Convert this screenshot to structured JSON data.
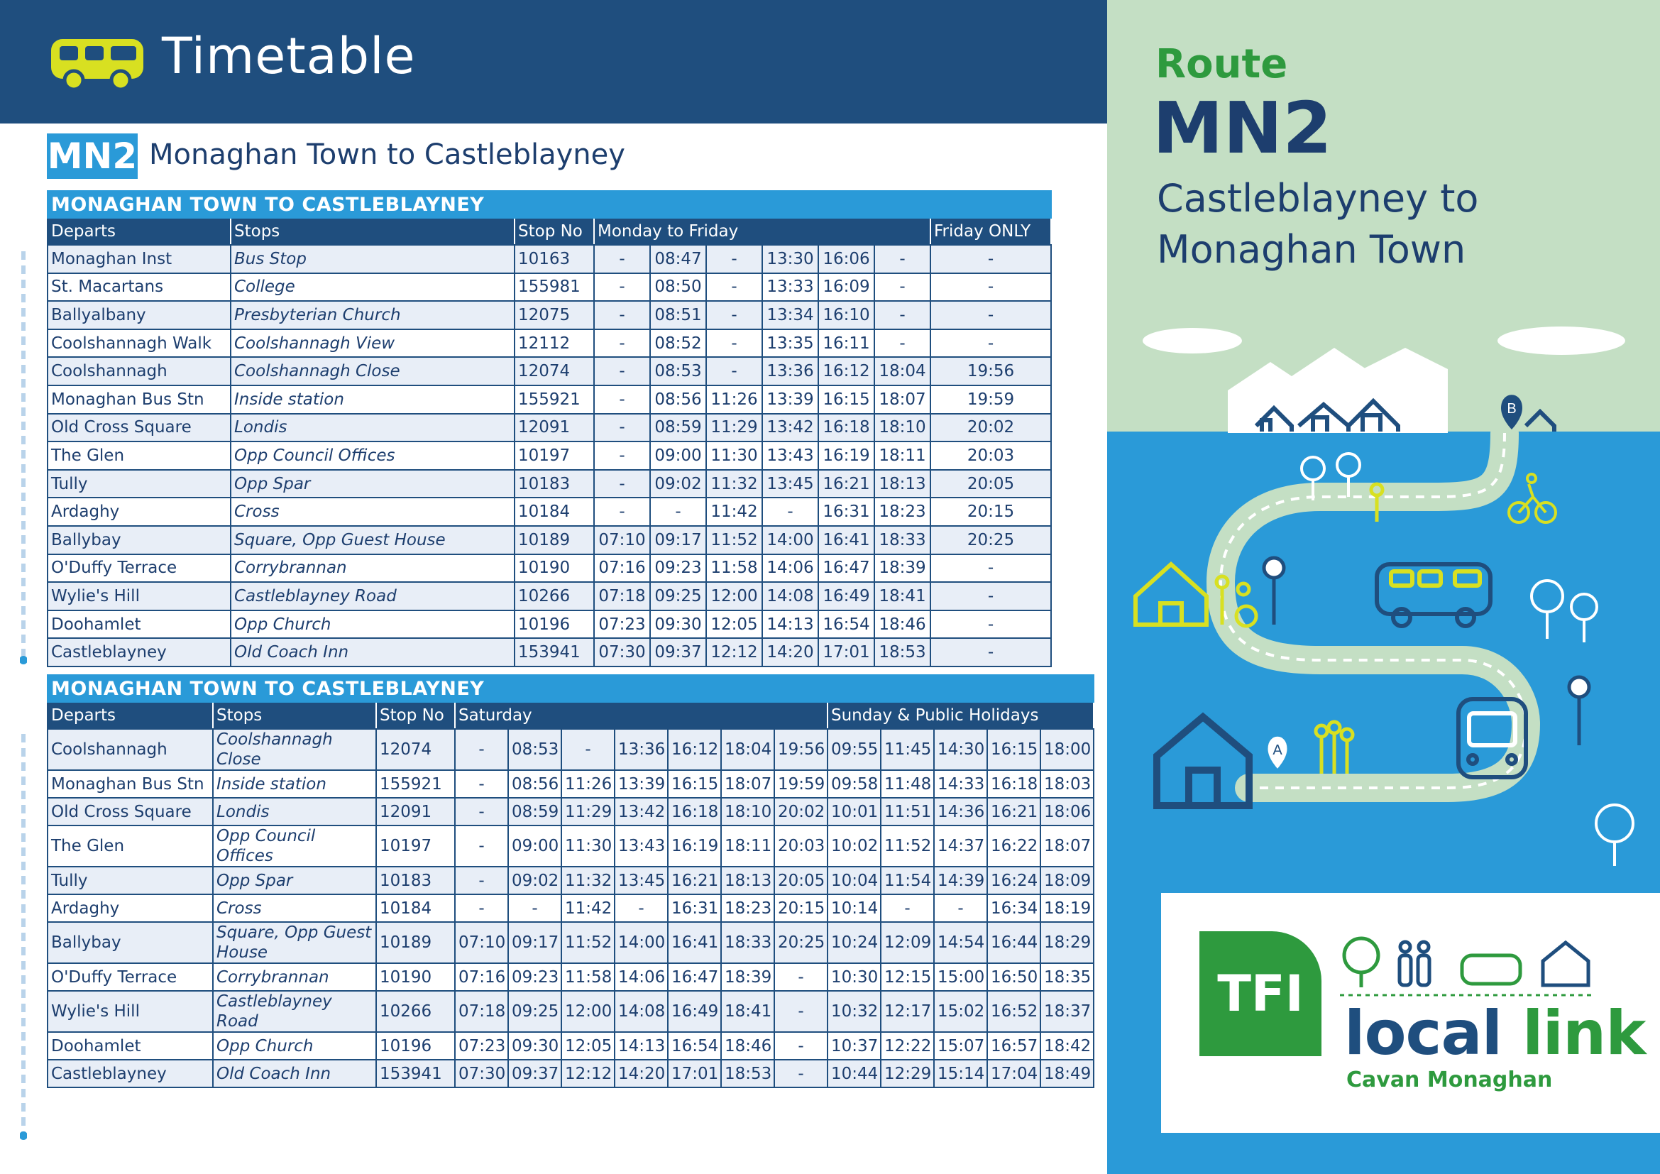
{
  "header": {
    "title": "Timetable"
  },
  "route": {
    "badge": "MN2",
    "title": "Monaghan Town to Castleblayney"
  },
  "weekday": {
    "band": "MONAGHAN TOWN TO CASTLEBLAYNEY",
    "headers": [
      "Departs",
      "Stops",
      "Stop No",
      "Monday to Friday",
      "Friday ONLY"
    ],
    "rows": [
      [
        "Monaghan Inst",
        "Bus Stop",
        "10163",
        "-",
        "08:47",
        "-",
        "13:30",
        "16:06",
        "-",
        "-"
      ],
      [
        "St. Macartans",
        "College",
        "155981",
        "-",
        "08:50",
        "-",
        "13:33",
        "16:09",
        "-",
        "-"
      ],
      [
        "Ballyalbany",
        "Presbyterian Church",
        "12075",
        "-",
        "08:51",
        "-",
        "13:34",
        "16:10",
        "-",
        "-"
      ],
      [
        "Coolshannagh Walk",
        "Coolshannagh View",
        "12112",
        "-",
        "08:52",
        "-",
        "13:35",
        "16:11",
        "-",
        "-"
      ],
      [
        "Coolshannagh",
        "Coolshannagh Close",
        "12074",
        "-",
        "08:53",
        "-",
        "13:36",
        "16:12",
        "18:04",
        "19:56"
      ],
      [
        "Monaghan Bus Stn",
        "Inside station",
        "155921",
        "-",
        "08:56",
        "11:26",
        "13:39",
        "16:15",
        "18:07",
        "19:59"
      ],
      [
        "Old Cross Square",
        "Londis",
        "12091",
        "-",
        "08:59",
        "11:29",
        "13:42",
        "16:18",
        "18:10",
        "20:02"
      ],
      [
        "The Glen",
        "Opp Council Offices",
        "10197",
        "-",
        "09:00",
        "11:30",
        "13:43",
        "16:19",
        "18:11",
        "20:03"
      ],
      [
        "Tully",
        "Opp Spar",
        "10183",
        "-",
        "09:02",
        "11:32",
        "13:45",
        "16:21",
        "18:13",
        "20:05"
      ],
      [
        "Ardaghy",
        "Cross",
        "10184",
        "-",
        "-",
        "11:42",
        "-",
        "16:31",
        "18:23",
        "20:15"
      ],
      [
        "Ballybay",
        "Square, Opp Guest House",
        "10189",
        "07:10",
        "09:17",
        "11:52",
        "14:00",
        "16:41",
        "18:33",
        "20:25"
      ],
      [
        "O'Duffy Terrace",
        "Corrybrannan",
        "10190",
        "07:16",
        "09:23",
        "11:58",
        "14:06",
        "16:47",
        "18:39",
        "-"
      ],
      [
        "Wylie's Hill",
        "Castleblayney Road",
        "10266",
        "07:18",
        "09:25",
        "12:00",
        "14:08",
        "16:49",
        "18:41",
        "-"
      ],
      [
        "Doohamlet",
        "Opp Church",
        "10196",
        "07:23",
        "09:30",
        "12:05",
        "14:13",
        "16:54",
        "18:46",
        "-"
      ],
      [
        "Castleblayney",
        "Old Coach Inn",
        "153941",
        "07:30",
        "09:37",
        "12:12",
        "14:20",
        "17:01",
        "18:53",
        "-"
      ]
    ]
  },
  "weekend": {
    "band": "MONAGHAN TOWN TO CASTLEBLAYNEY",
    "headers": [
      "Departs",
      "Stops",
      "Stop No",
      "Saturday",
      "Sunday & Public Holidays"
    ],
    "rows": [
      [
        "Coolshannagh",
        "Coolshannagh Close",
        "12074",
        "-",
        "08:53",
        "-",
        "13:36",
        "16:12",
        "18:04",
        "19:56",
        "09:55",
        "11:45",
        "14:30",
        "16:15",
        "18:00"
      ],
      [
        "Monaghan Bus Stn",
        "Inside station",
        "155921",
        "-",
        "08:56",
        "11:26",
        "13:39",
        "16:15",
        "18:07",
        "19:59",
        "09:58",
        "11:48",
        "14:33",
        "16:18",
        "18:03"
      ],
      [
        "Old Cross Square",
        "Londis",
        "12091",
        "-",
        "08:59",
        "11:29",
        "13:42",
        "16:18",
        "18:10",
        "20:02",
        "10:01",
        "11:51",
        "14:36",
        "16:21",
        "18:06"
      ],
      [
        "The Glen",
        "Opp Council Offices",
        "10197",
        "-",
        "09:00",
        "11:30",
        "13:43",
        "16:19",
        "18:11",
        "20:03",
        "10:02",
        "11:52",
        "14:37",
        "16:22",
        "18:07"
      ],
      [
        "Tully",
        "Opp Spar",
        "10183",
        "-",
        "09:02",
        "11:32",
        "13:45",
        "16:21",
        "18:13",
        "20:05",
        "10:04",
        "11:54",
        "14:39",
        "16:24",
        "18:09"
      ],
      [
        "Ardaghy",
        "Cross",
        "10184",
        "-",
        "-",
        "11:42",
        "-",
        "16:31",
        "18:23",
        "20:15",
        "10:14",
        "-",
        "-",
        "16:34",
        "18:19"
      ],
      [
        "Ballybay",
        "Square, Opp Guest House",
        "10189",
        "07:10",
        "09:17",
        "11:52",
        "14:00",
        "16:41",
        "18:33",
        "20:25",
        "10:24",
        "12:09",
        "14:54",
        "16:44",
        "18:29"
      ],
      [
        "O'Duffy Terrace",
        "Corrybrannan",
        "10190",
        "07:16",
        "09:23",
        "11:58",
        "14:06",
        "16:47",
        "18:39",
        "-",
        "10:30",
        "12:15",
        "15:00",
        "16:50",
        "18:35"
      ],
      [
        "Wylie's Hill",
        "Castleblayney Road",
        "10266",
        "07:18",
        "09:25",
        "12:00",
        "14:08",
        "16:49",
        "18:41",
        "-",
        "10:32",
        "12:17",
        "15:02",
        "16:52",
        "18:37"
      ],
      [
        "Doohamlet",
        "Opp Church",
        "10196",
        "07:23",
        "09:30",
        "12:05",
        "14:13",
        "16:54",
        "18:46",
        "-",
        "10:37",
        "12:22",
        "15:07",
        "16:57",
        "18:42"
      ],
      [
        "Castleblayney",
        "Old Coach Inn",
        "153941",
        "07:30",
        "09:37",
        "12:12",
        "14:20",
        "17:01",
        "18:53",
        "-",
        "10:44",
        "12:29",
        "15:14",
        "17:04",
        "18:49"
      ]
    ]
  },
  "panel": {
    "route_label": "Route",
    "route_code": "MN2",
    "line1": "Castleblayney to",
    "line2": "Monaghan Town",
    "stop_a": "A",
    "stop_b": "B"
  },
  "brand": {
    "tfi": "TFI",
    "local": "local",
    "link": "link",
    "region": "Cavan Monaghan",
    "navy": "#1f4e7e",
    "blue": "#2a9ad8",
    "green": "#2e9a3e",
    "yellow": "#d8e021"
  }
}
